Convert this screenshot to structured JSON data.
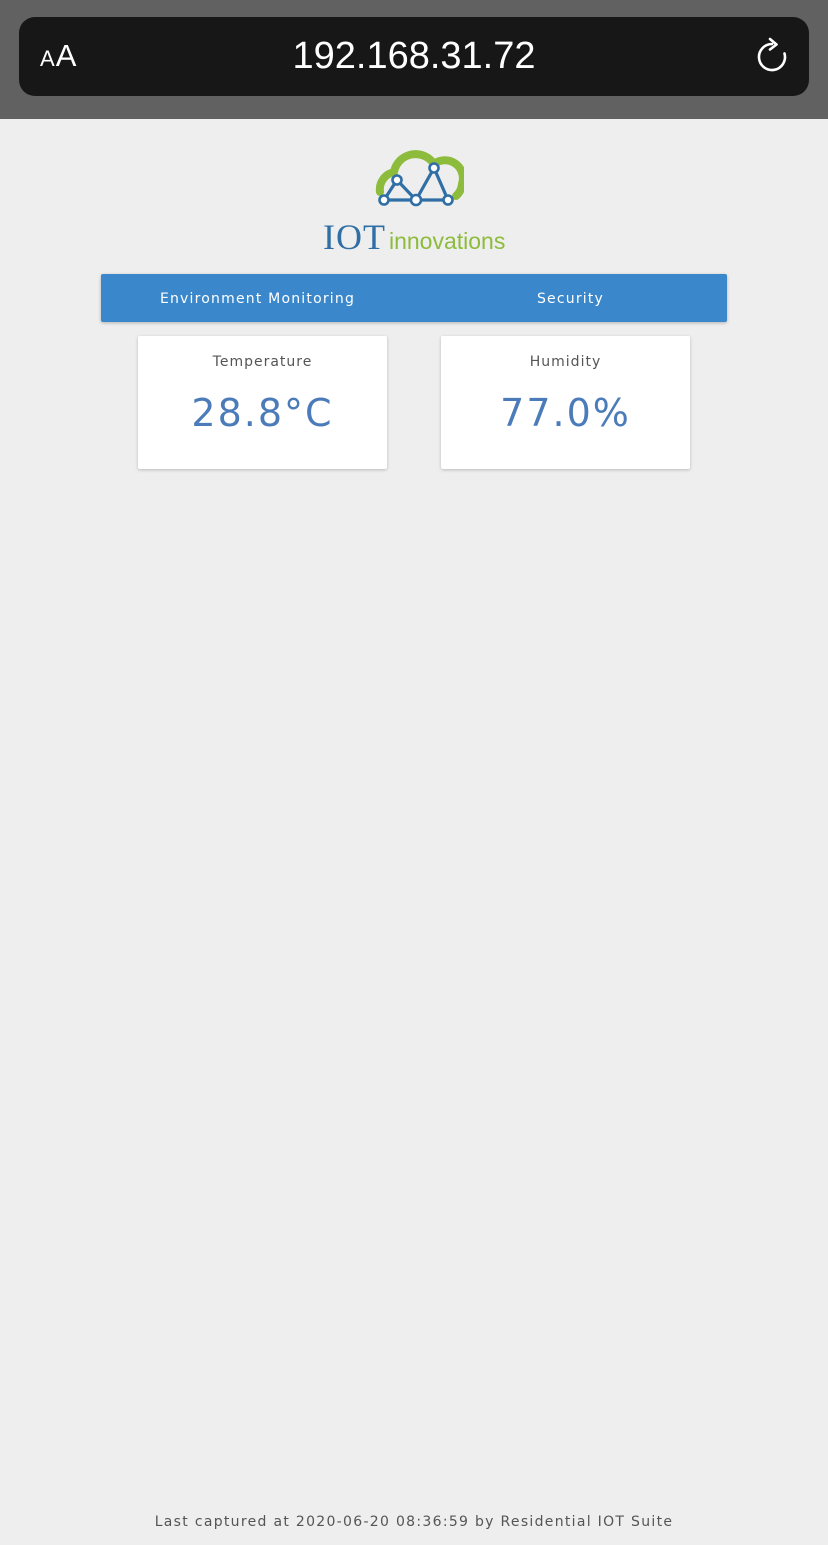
{
  "browser": {
    "text_size_small": "A",
    "text_size_large": "A",
    "url": "192.168.31.72",
    "reload_icon": "reload-icon"
  },
  "logo": {
    "iot": "IOT",
    "innovations": "innovations",
    "colors": {
      "blue": "#2f6fa5",
      "green": "#8dbb3c"
    }
  },
  "nav": {
    "tabs": [
      {
        "label": "Environment Monitoring"
      },
      {
        "label": "Security"
      }
    ],
    "color": "#3a87cc"
  },
  "cards": [
    {
      "label": "Temperature",
      "value": "28.8°C"
    },
    {
      "label": "Humidity",
      "value": "77.0%"
    }
  ],
  "footer": {
    "text": "Last captured at 2020-06-20 08:36:59 by Residential IOT Suite"
  }
}
